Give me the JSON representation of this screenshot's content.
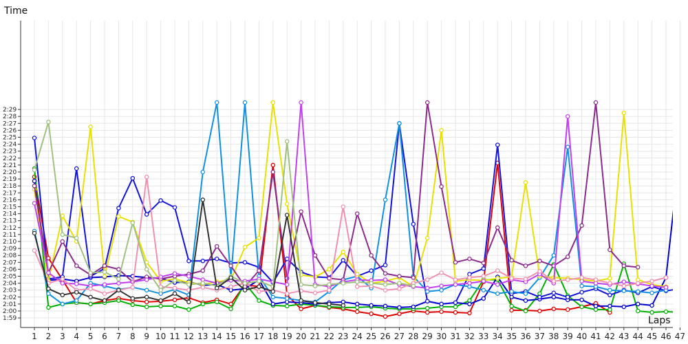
{
  "chart_data": {
    "type": "line",
    "ylabel": "Time",
    "xlabel": "Laps",
    "xlim": [
      1,
      47
    ],
    "ylim": [
      118,
      150
    ],
    "x_ticks": [
      "1",
      "2",
      "3",
      "4",
      "5",
      "6",
      "7",
      "8",
      "9",
      "10",
      "11",
      "12",
      "13",
      "14",
      "15",
      "16",
      "17",
      "18",
      "19",
      "20",
      "21",
      "22",
      "23",
      "24",
      "25",
      "26",
      "27",
      "28",
      "29",
      "30",
      "31",
      "32",
      "33",
      "34",
      "35",
      "36",
      "37",
      "38",
      "39",
      "40",
      "41",
      "42",
      "43",
      "44",
      "45",
      "46",
      "47"
    ],
    "y_ticks": [
      "1:59",
      "2:00",
      "2:01",
      "2:02",
      "2:03",
      "2:04",
      "2:05",
      "2:06",
      "2:07",
      "2:08",
      "2:09",
      "2:10",
      "2:11",
      "2:12",
      "2:13",
      "2:14",
      "2:15",
      "2:16",
      "2:17",
      "2:18",
      "2:19",
      "2:20",
      "2:21",
      "2:22",
      "2:23",
      "2:24",
      "2:25",
      "2:26",
      "2:27",
      "2:28",
      "2:29"
    ],
    "grid": true,
    "series": [
      {
        "color": "#e00000",
        "values": [
          139.3,
          127.6,
          124.5,
          121.2,
          121.0,
          121.5,
          121.8,
          121.5,
          121.3,
          121.4,
          121.6,
          121.9,
          121.2,
          121.6,
          121.0,
          123.8,
          123.5,
          141.0,
          122.3,
          120.3,
          120.8,
          120.5,
          120.3,
          119.9,
          119.6,
          119.2,
          119.6,
          120.0,
          119.8,
          119.9,
          119.8,
          119.7,
          124.2,
          141.3,
          120.1,
          120.1,
          120.0,
          120.3,
          120.2,
          120.6,
          121.1,
          119.8,
          null,
          null,
          null,
          null,
          null
        ]
      },
      {
        "color": "#00b000",
        "values": [
          140.5,
          120.5,
          121.0,
          121.2,
          121.0,
          121.2,
          121.5,
          120.9,
          120.6,
          120.7,
          120.7,
          120.2,
          121.0,
          121.3,
          120.3,
          124.0,
          121.5,
          120.8,
          120.7,
          121.0,
          120.8,
          120.6,
          120.5,
          120.5,
          120.6,
          120.4,
          120.3,
          120.3,
          120.4,
          120.6,
          120.6,
          121.5,
          124.5,
          124.5,
          120.7,
          120.0,
          122.5,
          126.7,
          122.2,
          120.6,
          120.2,
          120.2,
          126.8,
          120.0,
          119.8,
          119.9,
          119.8
        ]
      },
      {
        "color": "#0000cc",
        "values": [
          138.7,
          124.4,
          124.6,
          124.3,
          124.8,
          124.9,
          125.1,
          125.0,
          124.8,
          124.7,
          124.1,
          124.2,
          123.7,
          123.8,
          123.0,
          123.2,
          124.5,
          121.0,
          121.3,
          121.2,
          121.0,
          121.2,
          121.3,
          121.0,
          120.8,
          120.7,
          120.5,
          120.6,
          121.4,
          121.0,
          121.2,
          121.0,
          121.8,
          124.9,
          122.0,
          121.5,
          121.7,
          122.0,
          121.6,
          121.6,
          120.7,
          120.7,
          120.6,
          121.0,
          120.8,
          124.8,
          143.0
        ]
      },
      {
        "color": "#1111dd",
        "values": [
          144.9,
          124.6,
          124.9,
          140.5,
          125.0,
          126.1,
          134.8,
          139.1,
          133.9,
          135.9,
          134.9,
          127.2,
          127.2,
          127.5,
          126.9,
          127.0,
          126.3,
          124.1,
          127.5,
          125.6,
          124.9,
          124.8,
          127.3,
          125.0,
          125.8,
          126.6,
          147.0,
          132.5,
          121.4,
          121.0,
          121.2,
          125.3,
          126.1,
          143.9,
          122.5,
          122.8,
          122.0,
          122.6,
          122.0,
          122.7,
          123.2,
          122.3,
          123.0,
          122.6,
          123.5,
          122.9,
          123.2
        ]
      },
      {
        "color": "#1090e0",
        "values": [
          131.5,
          122.5,
          121.0,
          121.5,
          124.0,
          123.6,
          123.1,
          123.4,
          123.0,
          122.5,
          123.1,
          122.3,
          140.0,
          150.0,
          124.7,
          150.0,
          125.0,
          122.0,
          121.8,
          121.5,
          121.3,
          122.8,
          124.5,
          125.0,
          123.3,
          136.0,
          147.0,
          125.0,
          122.8,
          123.0,
          123.8,
          123.5,
          123.0,
          122.5,
          122.8,
          122.5,
          124.8,
          128.0,
          143.6,
          123.6,
          123.5,
          123.0,
          122.9,
          122.8,
          122.6,
          123.0,
          null
        ]
      },
      {
        "color": "#e8e000",
        "values": [
          137.5,
          124.3,
          133.7,
          130.0,
          146.5,
          125.0,
          133.6,
          132.8,
          127.0,
          124.3,
          124.6,
          124.1,
          123.8,
          124.2,
          124.5,
          129.2,
          130.5,
          150.0,
          135.4,
          125.2,
          124.9,
          126.0,
          128.5,
          125.3,
          124.0,
          124.3,
          124.8,
          123.5,
          130.5,
          146.0,
          124.3,
          124.5,
          124.4,
          124.7,
          124.9,
          138.5,
          125.0,
          124.8,
          124.7,
          124.5,
          124.3,
          124.7,
          148.5,
          124.5,
          123.8,
          123.5,
          null
        ]
      },
      {
        "color": "#8a2a8a",
        "values": [
          138.0,
          125.5,
          130.0,
          126.5,
          125.2,
          126.5,
          126.0,
          124.2,
          124.9,
          124.6,
          125.0,
          125.3,
          125.8,
          129.3,
          126.5,
          123.5,
          125.8,
          140.0,
          124.7,
          134.3,
          128.0,
          124.7,
          124.5,
          134.0,
          128.0,
          125.4,
          125.0,
          124.8,
          150.0,
          137.9,
          127.0,
          127.5,
          126.9,
          132.0,
          127.3,
          126.5,
          127.2,
          126.5,
          127.8,
          132.3,
          150.0,
          128.8,
          126.5,
          126.3,
          null,
          null,
          null
        ]
      },
      {
        "color": "#c040f0",
        "values": [
          135.5,
          125.5,
          124.0,
          123.9,
          123.6,
          123.8,
          124.0,
          124.2,
          124.5,
          124.9,
          125.4,
          125.0,
          124.5,
          124.0,
          124.4,
          124.3,
          124.6,
          124.2,
          123.8,
          150.0,
          123.8,
          123.5,
          124.2,
          124.5,
          124.4,
          124.5,
          123.8,
          123.5,
          123.3,
          123.6,
          123.8,
          124.0,
          124.3,
          123.8,
          124.5,
          124.2,
          125.3,
          124.0,
          148.0,
          124.3,
          124.0,
          123.8,
          124.2,
          123.9,
          123.6,
          123.4,
          null
        ]
      },
      {
        "color": "#f090b0",
        "values": [
          128.7,
          124.0,
          124.6,
          123.0,
          123.2,
          122.5,
          123.0,
          123.4,
          139.3,
          123.5,
          123.3,
          123.0,
          123.4,
          123.0,
          123.5,
          124.0,
          122.8,
          123.0,
          122.5,
          122.9,
          122.6,
          123.0,
          135.0,
          123.5,
          123.6,
          123.0,
          123.2,
          124.0,
          124.5,
          125.5,
          124.5,
          124.8,
          125.0,
          125.8,
          124.7,
          124.6,
          125.7,
          124.3,
          124.5,
          124.8,
          124.5,
          124.0,
          123.6,
          124.0,
          124.3,
          124.8,
          null
        ]
      },
      {
        "color": "#a0c080",
        "values": [
          140.3,
          147.2,
          131.0,
          130.5,
          125.5,
          125.6,
          124.6,
          132.7,
          126.0,
          123.0,
          124.4,
          123.8,
          124.0,
          123.6,
          125.0,
          124.0,
          124.3,
          123.5,
          144.4,
          123.8,
          123.6,
          123.8,
          124.0,
          124.2,
          124.0,
          123.8,
          124.0,
          123.6,
          null,
          null,
          null,
          null,
          null,
          null,
          null,
          null,
          null,
          null,
          null,
          null,
          null,
          null,
          null,
          null,
          null,
          null,
          null
        ]
      },
      {
        "color": "#303030",
        "values": [
          131.2,
          123.2,
          122.3,
          122.7,
          122.0,
          121.5,
          123.0,
          121.8,
          122.0,
          121.5,
          122.5,
          121.3,
          136.0,
          123.3,
          124.8,
          123.0,
          123.5,
          122.8,
          133.8,
          121.5,
          121.2,
          121.0,
          120.8,
          null,
          null,
          null,
          null,
          null,
          null,
          null,
          null,
          null,
          null,
          null,
          null,
          null,
          null,
          null,
          null,
          null,
          null,
          null,
          null,
          null,
          null,
          null,
          null
        ]
      }
    ]
  }
}
